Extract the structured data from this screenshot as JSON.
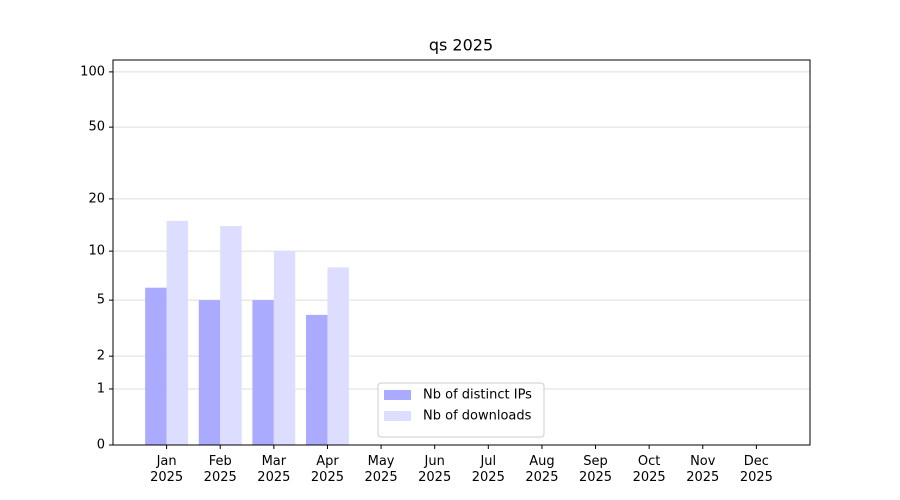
{
  "chart_data": {
    "type": "bar",
    "title": "qs 2025",
    "categories": [
      "Jan\n2025",
      "Feb\n2025",
      "Mar\n2025",
      "Apr\n2025",
      "May\n2025",
      "Jun\n2025",
      "Jul\n2025",
      "Aug\n2025",
      "Sep\n2025",
      "Oct\n2025",
      "Nov\n2025",
      "Dec\n2025"
    ],
    "series": [
      {
        "name": "Nb of distinct IPs",
        "color": "#aaaaff",
        "values": [
          6,
          5,
          5,
          4,
          null,
          null,
          null,
          null,
          null,
          null,
          null,
          null
        ]
      },
      {
        "name": "Nb of downloads",
        "color": "#ddddff",
        "values": [
          15,
          14,
          10,
          8,
          null,
          null,
          null,
          null,
          null,
          null,
          null,
          null
        ]
      }
    ],
    "yscale": "log1p",
    "ylim": [
      0,
      116
    ],
    "yticks": [
      0,
      1,
      2,
      5,
      10,
      20,
      50,
      100
    ],
    "grid": true,
    "legend": "lower center"
  }
}
